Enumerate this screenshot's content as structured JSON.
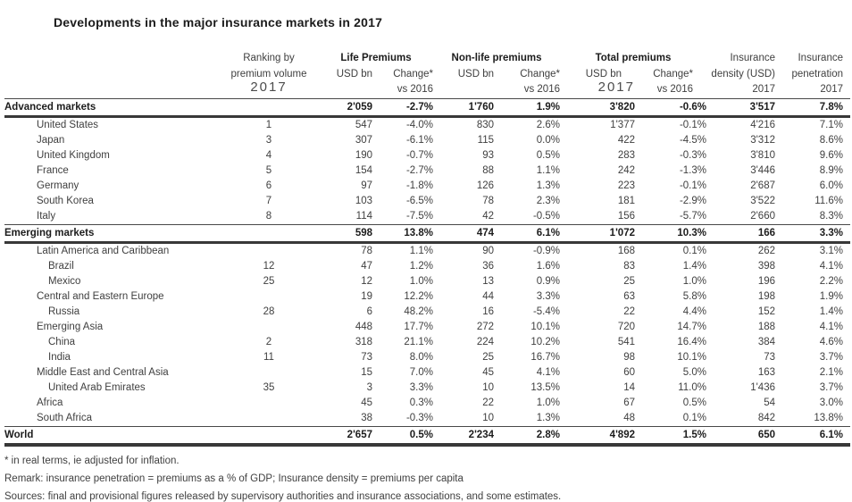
{
  "page": {
    "title": "Developments in the major insurance markets in 2017"
  },
  "table": {
    "header": {
      "ranking_line1": "Ranking by",
      "ranking_line2": "premium volume",
      "ranking_year_big": "2017",
      "group_life": "Life Premiums",
      "group_nonlife": "Non-life premiums",
      "group_total": "Total premiums",
      "usd_bn": "USD bn",
      "change": "Change*",
      "vs_2016": "vs 2016",
      "total_year_big": "2017",
      "density_line1": "Insurance",
      "density_line2": "density (USD)",
      "density_year": "2017",
      "penetration_line1": "Insurance",
      "penetration_line2": "penetration",
      "penetration_year": "2017"
    },
    "columns": [
      "rank",
      "life_usd",
      "life_chg",
      "nonlife_usd",
      "nonlife_chg",
      "total_usd",
      "total_chg",
      "density",
      "penetration"
    ],
    "rows": [
      {
        "label": "Advanced markets",
        "level": "section",
        "rank": "",
        "life_usd": "2'059",
        "life_chg": "-2.7%",
        "nonlife_usd": "1'760",
        "nonlife_chg": "1.9%",
        "total_usd": "3'820",
        "total_chg": "-0.6%",
        "density": "3'517",
        "penetration": "7.8%"
      },
      {
        "label": "United States",
        "level": "country",
        "rank": "1",
        "life_usd": "547",
        "life_chg": "-4.0%",
        "nonlife_usd": "830",
        "nonlife_chg": "2.6%",
        "total_usd": "1'377",
        "total_chg": "-0.1%",
        "density": "4'216",
        "penetration": "7.1%"
      },
      {
        "label": "Japan",
        "level": "country",
        "rank": "3",
        "life_usd": "307",
        "life_chg": "-6.1%",
        "nonlife_usd": "115",
        "nonlife_chg": "0.0%",
        "total_usd": "422",
        "total_chg": "-4.5%",
        "density": "3'312",
        "penetration": "8.6%"
      },
      {
        "label": "United Kingdom",
        "level": "country",
        "rank": "4",
        "life_usd": "190",
        "life_chg": "-0.7%",
        "nonlife_usd": "93",
        "nonlife_chg": "0.5%",
        "total_usd": "283",
        "total_chg": "-0.3%",
        "density": "3'810",
        "penetration": "9.6%"
      },
      {
        "label": "France",
        "level": "country",
        "rank": "5",
        "life_usd": "154",
        "life_chg": "-2.7%",
        "nonlife_usd": "88",
        "nonlife_chg": "1.1%",
        "total_usd": "242",
        "total_chg": "-1.3%",
        "density": "3'446",
        "penetration": "8.9%"
      },
      {
        "label": "Germany",
        "level": "country",
        "rank": "6",
        "life_usd": "97",
        "life_chg": "-1.8%",
        "nonlife_usd": "126",
        "nonlife_chg": "1.3%",
        "total_usd": "223",
        "total_chg": "-0.1%",
        "density": "2'687",
        "penetration": "6.0%"
      },
      {
        "label": "South Korea",
        "level": "country",
        "rank": "7",
        "life_usd": "103",
        "life_chg": "-6.5%",
        "nonlife_usd": "78",
        "nonlife_chg": "2.3%",
        "total_usd": "181",
        "total_chg": "-2.9%",
        "density": "3'522",
        "penetration": "11.6%"
      },
      {
        "label": "Italy",
        "level": "country",
        "rank": "8",
        "life_usd": "114",
        "life_chg": "-7.5%",
        "nonlife_usd": "42",
        "nonlife_chg": "-0.5%",
        "total_usd": "156",
        "total_chg": "-5.7%",
        "density": "2'660",
        "penetration": "8.3%"
      },
      {
        "label": "Emerging markets",
        "level": "section",
        "rank": "",
        "life_usd": "598",
        "life_chg": "13.8%",
        "nonlife_usd": "474",
        "nonlife_chg": "6.1%",
        "total_usd": "1'072",
        "total_chg": "10.3%",
        "density": "166",
        "penetration": "3.3%"
      },
      {
        "label": "Latin America and Caribbean",
        "level": "country",
        "rank": "",
        "life_usd": "78",
        "life_chg": "1.1%",
        "nonlife_usd": "90",
        "nonlife_chg": "-0.9%",
        "total_usd": "168",
        "total_chg": "0.1%",
        "density": "262",
        "penetration": "3.1%"
      },
      {
        "label": "Brazil",
        "level": "subcountry",
        "rank": "12",
        "life_usd": "47",
        "life_chg": "1.2%",
        "nonlife_usd": "36",
        "nonlife_chg": "1.6%",
        "total_usd": "83",
        "total_chg": "1.4%",
        "density": "398",
        "penetration": "4.1%"
      },
      {
        "label": "Mexico",
        "level": "subcountry",
        "rank": "25",
        "life_usd": "12",
        "life_chg": "1.0%",
        "nonlife_usd": "13",
        "nonlife_chg": "0.9%",
        "total_usd": "25",
        "total_chg": "1.0%",
        "density": "196",
        "penetration": "2.2%"
      },
      {
        "label": "Central and Eastern Europe",
        "level": "country",
        "rank": "",
        "life_usd": "19",
        "life_chg": "12.2%",
        "nonlife_usd": "44",
        "nonlife_chg": "3.3%",
        "total_usd": "63",
        "total_chg": "5.8%",
        "density": "198",
        "penetration": "1.9%"
      },
      {
        "label": "Russia",
        "level": "subcountry",
        "rank": "28",
        "life_usd": "6",
        "life_chg": "48.2%",
        "nonlife_usd": "16",
        "nonlife_chg": "-5.4%",
        "total_usd": "22",
        "total_chg": "4.4%",
        "density": "152",
        "penetration": "1.4%"
      },
      {
        "label": "Emerging Asia",
        "level": "country",
        "rank": "",
        "life_usd": "448",
        "life_chg": "17.7%",
        "nonlife_usd": "272",
        "nonlife_chg": "10.1%",
        "total_usd": "720",
        "total_chg": "14.7%",
        "density": "188",
        "penetration": "4.1%"
      },
      {
        "label": "China",
        "level": "subcountry",
        "rank": "2",
        "life_usd": "318",
        "life_chg": "21.1%",
        "nonlife_usd": "224",
        "nonlife_chg": "10.2%",
        "total_usd": "541",
        "total_chg": "16.4%",
        "density": "384",
        "penetration": "4.6%"
      },
      {
        "label": "India",
        "level": "subcountry",
        "rank": "11",
        "life_usd": "73",
        "life_chg": "8.0%",
        "nonlife_usd": "25",
        "nonlife_chg": "16.7%",
        "total_usd": "98",
        "total_chg": "10.1%",
        "density": "73",
        "penetration": "3.7%"
      },
      {
        "label": "Middle East and Central Asia",
        "level": "country",
        "rank": "",
        "life_usd": "15",
        "life_chg": "7.0%",
        "nonlife_usd": "45",
        "nonlife_chg": "4.1%",
        "total_usd": "60",
        "total_chg": "5.0%",
        "density": "163",
        "penetration": "2.1%"
      },
      {
        "label": "United Arab Emirates",
        "level": "subcountry",
        "rank": "35",
        "life_usd": "3",
        "life_chg": "3.3%",
        "nonlife_usd": "10",
        "nonlife_chg": "13.5%",
        "total_usd": "14",
        "total_chg": "11.0%",
        "density": "1'436",
        "penetration": "3.7%"
      },
      {
        "label": "Africa",
        "level": "country",
        "rank": "",
        "life_usd": "45",
        "life_chg": "0.3%",
        "nonlife_usd": "22",
        "nonlife_chg": "1.0%",
        "total_usd": "67",
        "total_chg": "0.5%",
        "density": "54",
        "penetration": "3.0%"
      },
      {
        "label": "South Africa",
        "level": "country",
        "rank": "",
        "life_usd": "38",
        "life_chg": "-0.3%",
        "nonlife_usd": "10",
        "nonlife_chg": "1.3%",
        "total_usd": "48",
        "total_chg": "0.1%",
        "density": "842",
        "penetration": "13.8%"
      },
      {
        "label": "World",
        "level": "world",
        "rank": "",
        "life_usd": "2'657",
        "life_chg": "0.5%",
        "nonlife_usd": "2'234",
        "nonlife_chg": "2.8%",
        "total_usd": "4'892",
        "total_chg": "1.5%",
        "density": "650",
        "penetration": "6.1%"
      }
    ]
  },
  "footnotes": [
    "* in real terms, ie adjusted for inflation.",
    "Remark: insurance penetration = premiums as a % of GDP; Insurance density = premiums per capita",
    "Sources: final and provisional figures released by supervisory authorities and insurance associations, and some estimates."
  ],
  "colors": {
    "text": "#3f3f3f",
    "bold_text": "#1c1c1c",
    "rule": "#383838",
    "background": "#ffffff"
  }
}
